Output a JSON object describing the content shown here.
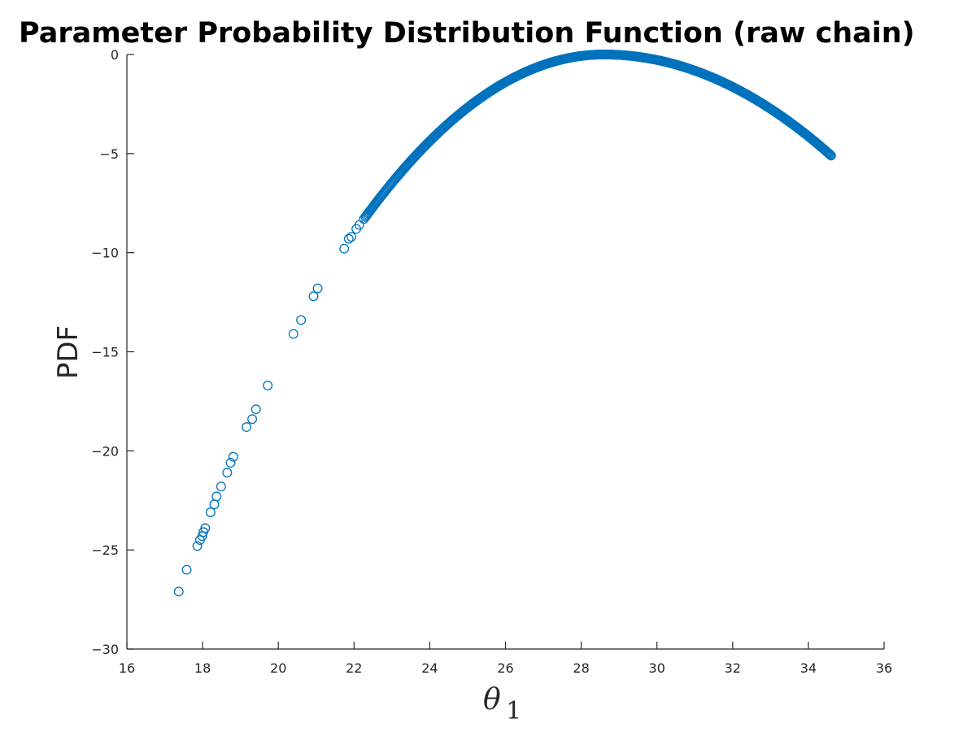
{
  "chart_data": {
    "type": "scatter",
    "title": "Parameter Probability Distribution Function (raw chain)",
    "xlabel": "θ",
    "xlabel_subscript": "1",
    "ylabel": "PDF",
    "xlim": [
      16,
      36
    ],
    "ylim": [
      -30,
      0
    ],
    "xticks": [
      16,
      18,
      20,
      22,
      24,
      26,
      28,
      30,
      32,
      34,
      36
    ],
    "yticks": [
      0,
      -5,
      -10,
      -15,
      -20,
      -25,
      -30
    ],
    "grid": false,
    "marker": "open-circle",
    "marker_color": "#0072BD",
    "series": [
      {
        "outliers": [
          [
            17.37,
            -27.1
          ],
          [
            17.58,
            -26.0
          ],
          [
            17.86,
            -24.8
          ],
          [
            17.93,
            -24.5
          ],
          [
            17.99,
            -24.3
          ],
          [
            18.02,
            -24.1
          ],
          [
            18.07,
            -23.9
          ],
          [
            18.21,
            -23.1
          ],
          [
            18.31,
            -22.7
          ],
          [
            18.37,
            -22.3
          ],
          [
            18.49,
            -21.8
          ],
          [
            18.65,
            -21.1
          ],
          [
            18.74,
            -20.6
          ],
          [
            18.81,
            -20.3
          ],
          [
            19.16,
            -18.8
          ],
          [
            19.31,
            -18.4
          ],
          [
            19.41,
            -17.9
          ],
          [
            19.72,
            -16.7
          ],
          [
            20.4,
            -14.1
          ],
          [
            20.6,
            -13.4
          ],
          [
            20.93,
            -12.2
          ],
          [
            21.04,
            -11.8
          ],
          [
            21.74,
            -9.8
          ],
          [
            21.86,
            -9.3
          ],
          [
            21.93,
            -9.2
          ],
          [
            22.06,
            -8.8
          ],
          [
            22.14,
            -8.6
          ],
          [
            22.26,
            -8.3
          ]
        ],
        "curve": {
          "x_range": [
            22.3,
            34.6
          ],
          "peak_x": 28.6,
          "peak_y": 0.0,
          "end_y": -5.1
        }
      }
    ]
  }
}
